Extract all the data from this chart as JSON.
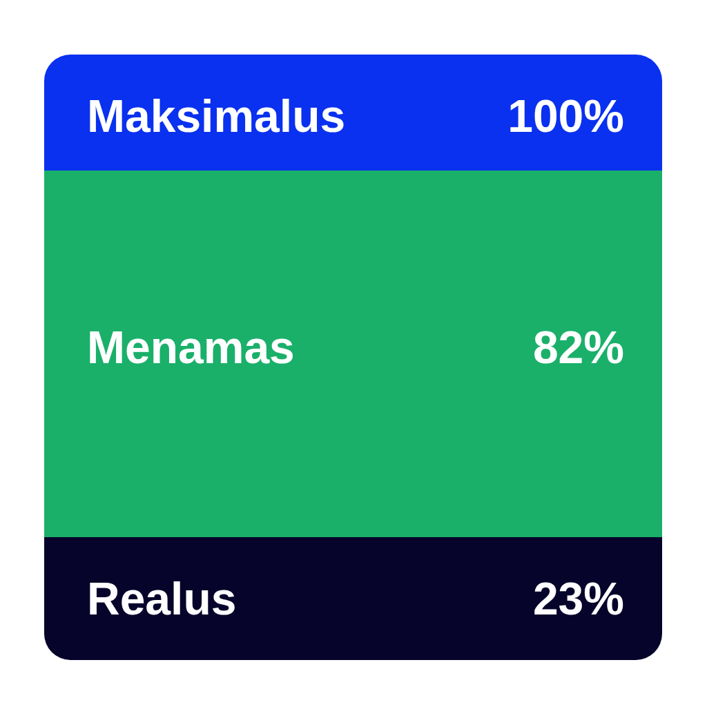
{
  "chart_data": {
    "type": "other",
    "categories": [
      "Maksimalus",
      "Menamas",
      "Realus"
    ],
    "values": [
      100,
      82,
      23
    ],
    "value_labels": [
      "100%",
      "82%",
      "23%"
    ],
    "colors": [
      "#0a31ef",
      "#1ab06a",
      "#06042b"
    ]
  }
}
